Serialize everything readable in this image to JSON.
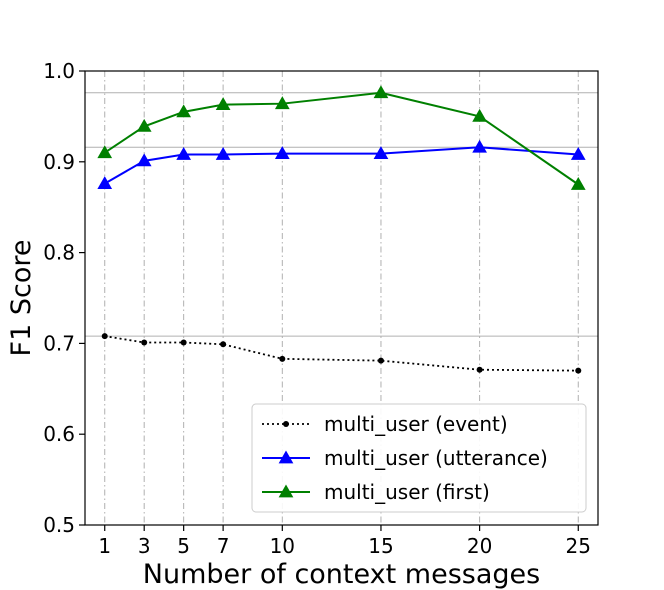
{
  "chart_data": {
    "type": "line",
    "title": "",
    "xlabel": "Number of context messages",
    "ylabel": "F1 Score",
    "x": [
      1,
      3,
      5,
      7,
      10,
      15,
      20,
      25
    ],
    "x_ticks": [
      "1",
      "3",
      "5",
      "7",
      "10",
      "15",
      "20",
      "25"
    ],
    "xlim": [
      0,
      26
    ],
    "ylim": [
      0.5,
      1.0
    ],
    "y_ticks": [
      "0.5",
      "0.6",
      "0.7",
      "0.8",
      "0.9",
      "1.0"
    ],
    "y_tick_values": [
      0.5,
      0.6,
      0.7,
      0.8,
      0.9,
      1.0
    ],
    "vertical_grid": "dash-dot at each x tick",
    "horizontal_reference_lines": [
      0.708,
      0.916,
      0.976
    ],
    "legend_position": "lower-right",
    "series": [
      {
        "name": "multi_user (event)",
        "values": [
          0.708,
          0.701,
          0.701,
          0.699,
          0.683,
          0.681,
          0.671,
          0.67
        ],
        "color": "#000000",
        "line_style": "dotted",
        "marker": "dot"
      },
      {
        "name": "multi_user (utterance)",
        "values": [
          0.876,
          0.901,
          0.908,
          0.908,
          0.909,
          0.909,
          0.916,
          0.908
        ],
        "color": "#0000ff",
        "line_style": "solid",
        "marker": "triangle"
      },
      {
        "name": "multi_user (first)",
        "values": [
          0.91,
          0.939,
          0.955,
          0.963,
          0.964,
          0.976,
          0.95,
          0.875
        ],
        "color": "#008000",
        "line_style": "solid",
        "marker": "triangle"
      }
    ]
  }
}
